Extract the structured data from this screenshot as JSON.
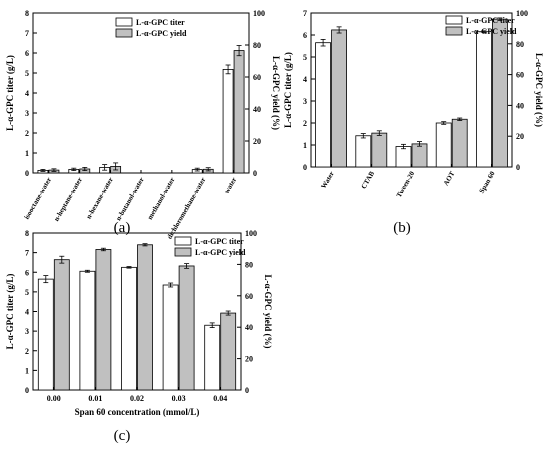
{
  "colors": {
    "titer": "#ffffff",
    "yield": "#c0c0c0",
    "axis": "#000000",
    "error": "#000000"
  },
  "chart_data": [
    {
      "panel_label": "(a)",
      "type": "bar",
      "categories": [
        "isooctane-water",
        "n-heptane-water",
        "n-hexane-water",
        "n-butanol-water",
        "methanol-water",
        "dichloromethane-water",
        "water"
      ],
      "series": [
        {
          "name": "L-α-GPC titer",
          "axis": "left",
          "values": [
            0.13,
            0.18,
            0.28,
            0.0,
            0.0,
            0.17,
            5.18
          ],
          "errors": [
            0.05,
            0.06,
            0.14,
            0,
            0,
            0.07,
            0.22
          ]
        },
        {
          "name": "L-α-GPC yield",
          "axis": "right",
          "values": [
            1.8,
            2.5,
            4.1,
            0.0,
            0.0,
            2.3,
            76.5
          ],
          "errors": [
            0.8,
            1.0,
            2.2,
            0,
            0,
            1.0,
            3.2
          ]
        }
      ],
      "ylabel_left": "L-α-GPC titer (g/L)",
      "ylabel_right": "L-α-GPC yield (%)",
      "xlabel": "",
      "ylim_left": [
        0,
        8
      ],
      "ylim_right": [
        0,
        100
      ],
      "yticks_left": [
        "0",
        "1",
        "2",
        "3",
        "4",
        "5",
        "6",
        "7",
        "8"
      ],
      "yticks_right": [
        "0",
        "20",
        "40",
        "60",
        "80",
        "100"
      ],
      "legend": {
        "position": "top-center",
        "entries": [
          "L-α-GPC titer",
          "L-α-GPC yield"
        ]
      }
    },
    {
      "panel_label": "(b)",
      "type": "bar",
      "categories": [
        "Water",
        "CTAB",
        "Tween-20",
        "AOT",
        "Span 60"
      ],
      "series": [
        {
          "name": "L-α-GPC titer",
          "axis": "left",
          "values": [
            5.65,
            1.42,
            0.93,
            2.0,
            6.15
          ],
          "errors": [
            0.15,
            0.1,
            0.1,
            0.06,
            0.04
          ]
        },
        {
          "name": "L-α-GPC yield",
          "axis": "right",
          "values": [
            89,
            22,
            15,
            31,
            96
          ],
          "errors": [
            2.0,
            1.5,
            1.5,
            0.8,
            0.8
          ]
        }
      ],
      "ylabel_left": "L-α-GPC titer (g/L)",
      "ylabel_right": "L-α-GPC yield (%)",
      "xlabel": "",
      "ylim_left": [
        0,
        7
      ],
      "ylim_right": [
        0,
        100
      ],
      "yticks_left": [
        "0",
        "1",
        "2",
        "3",
        "4",
        "5",
        "6",
        "7"
      ],
      "yticks_right": [
        "0",
        "20",
        "40",
        "60",
        "80",
        "100"
      ],
      "legend": {
        "position": "top-right",
        "entries": [
          "L-α-GPC titer",
          "L-α-GPC yield"
        ]
      }
    },
    {
      "panel_label": "(c)",
      "type": "bar",
      "categories": [
        "0.00",
        "0.01",
        "0.02",
        "0.03",
        "0.04"
      ],
      "series": [
        {
          "name": "L-α-GPC titer",
          "axis": "left",
          "values": [
            5.65,
            6.05,
            6.25,
            5.35,
            3.3
          ],
          "errors": [
            0.18,
            0.05,
            0.04,
            0.1,
            0.12
          ]
        },
        {
          "name": "L-α-GPC yield",
          "axis": "right",
          "values": [
            83,
            89.5,
            92.5,
            79,
            49
          ],
          "errors": [
            2.2,
            0.8,
            0.7,
            1.5,
            1.3
          ]
        }
      ],
      "ylabel_left": "L-α-GPC titer (g/L)",
      "ylabel_right": "L-α-GPC yield (%)",
      "xlabel": "Span 60 concentration (mmol/L)",
      "ylim_left": [
        0,
        8
      ],
      "ylim_right": [
        0,
        100
      ],
      "yticks_left": [
        "0",
        "1",
        "2",
        "3",
        "4",
        "5",
        "6",
        "7",
        "8"
      ],
      "yticks_right": [
        "0",
        "20",
        "40",
        "60",
        "80",
        "100"
      ],
      "legend": {
        "position": "top-right",
        "entries": [
          "L-α-GPC titer",
          "L-α-GPC yield"
        ]
      }
    }
  ]
}
